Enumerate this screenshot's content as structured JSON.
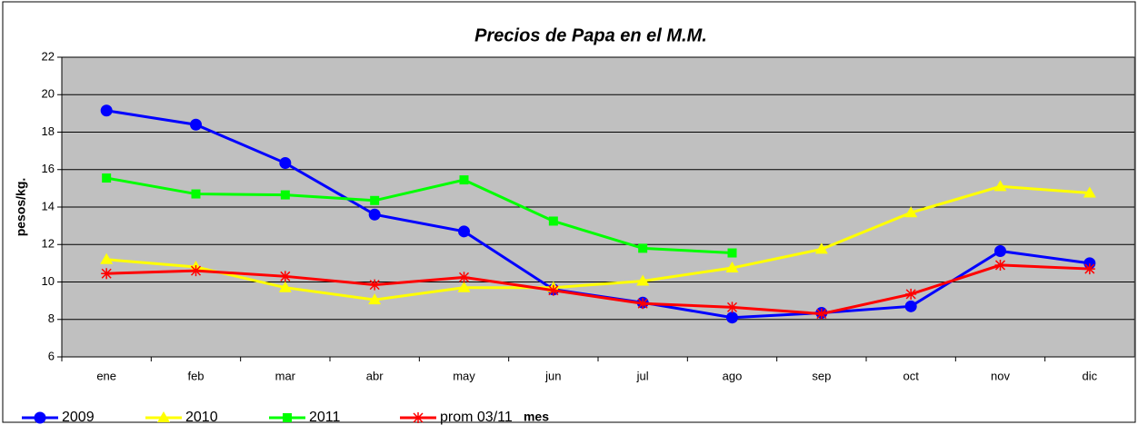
{
  "chart_data": {
    "type": "line",
    "title": "Precios de Papa en el M.M.",
    "y_label": "pesos/kg.",
    "x_label": "mes",
    "categories": [
      "ene",
      "feb",
      "mar",
      "abr",
      "may",
      "jun",
      "jul",
      "ago",
      "sep",
      "oct",
      "nov",
      "dic"
    ],
    "series": [
      {
        "name": "2009",
        "color": "#0000ff",
        "marker": "circle",
        "values": [
          19.15,
          18.4,
          16.35,
          13.6,
          12.7,
          9.6,
          8.9,
          8.1,
          8.35,
          8.7,
          11.65,
          11.0
        ]
      },
      {
        "name": "2010",
        "color": "#ffff00",
        "marker": "triangle",
        "values": [
          11.2,
          10.8,
          9.7,
          9.05,
          9.7,
          9.7,
          10.05,
          10.75,
          11.75,
          13.7,
          15.1,
          14.75
        ]
      },
      {
        "name": "2011",
        "color": "#00ff00",
        "marker": "square",
        "values": [
          15.55,
          14.7,
          14.65,
          14.35,
          15.45,
          13.25,
          11.8,
          11.55,
          null,
          null,
          null,
          null
        ]
      },
      {
        "name": "prom 03/11",
        "color": "#ff0000",
        "marker": "star",
        "values": [
          10.45,
          10.6,
          10.3,
          9.85,
          10.25,
          9.55,
          8.85,
          8.65,
          8.3,
          9.35,
          10.9,
          10.7
        ]
      }
    ],
    "ylim": [
      6,
      22
    ],
    "yticks": [
      6,
      8,
      10,
      12,
      14,
      16,
      18,
      20,
      22
    ],
    "grid": true,
    "legend": "bottom-left"
  }
}
